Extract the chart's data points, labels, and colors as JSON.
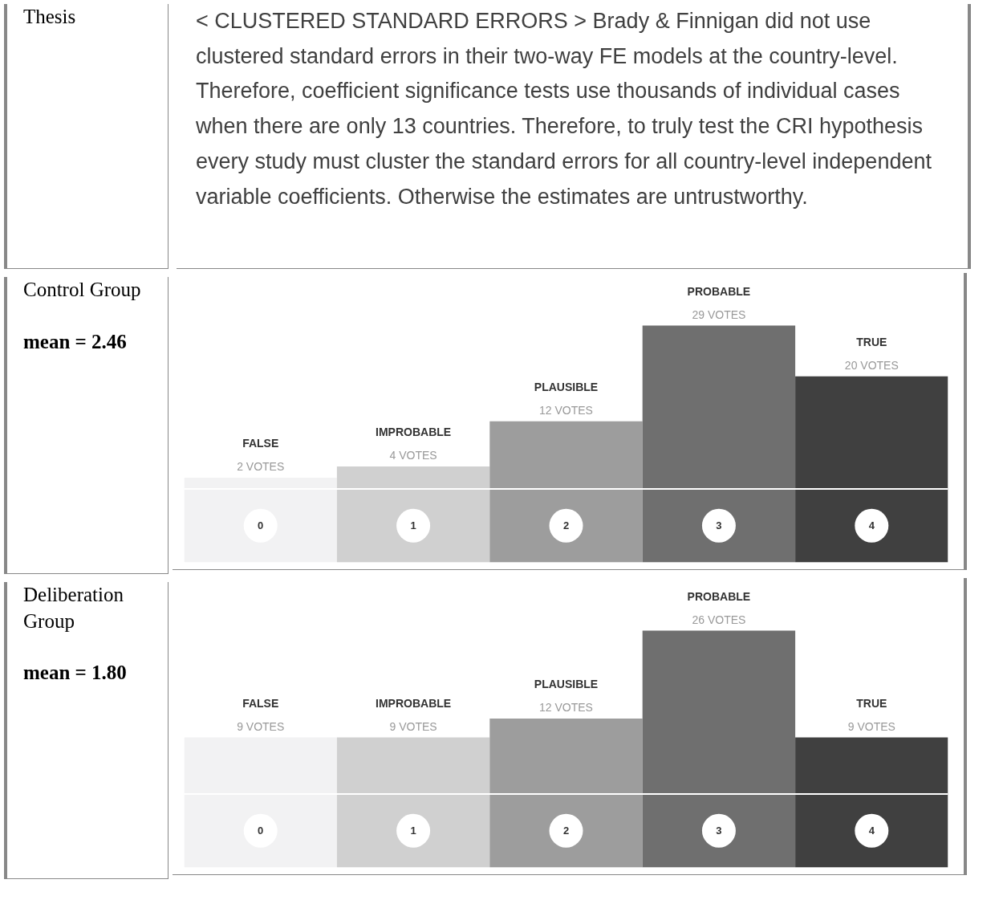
{
  "chart_data": [
    {
      "type": "other",
      "title": "Thesis",
      "annotations": [
        "< CLUSTERED STANDARD ERRORS > Brady & Finnigan did not use clustered standard errors in their two-way FE models at the country-level. Therefore, coefficient significance tests use thousands of individual cases when there are only 13 countries. Therefore, to truly test the CRI hypothesis every study must cluster the standard errors for all country-level independent variable coefficients. Otherwise the estimates are untrustworthy."
      ]
    },
    {
      "type": "bar",
      "title": "Control Group",
      "subtitle": "mean = 2.46",
      "categories": [
        "0",
        "1",
        "2",
        "3",
        "4"
      ],
      "values": [
        2,
        4,
        12,
        29,
        20
      ],
      "colors": [
        "#f2f2f3",
        "#d0d0d0",
        "#9d9d9d",
        "#6f6f6f",
        "#404040"
      ],
      "value_labels": [
        "2 VOTES",
        "4 VOTES",
        "12 VOTES",
        "29 VOTES",
        "20 VOTES"
      ],
      "annotations": [
        {
          "text": "FALSE",
          "x": "0",
          "y": 2
        },
        {
          "text": "IMPROBABLE",
          "x": "1",
          "y": 4
        },
        {
          "text": "PLAUSIBLE",
          "x": "2",
          "y": 12
        },
        {
          "text": "PROBABLE",
          "x": "3",
          "y": 29
        },
        {
          "text": "TRUE",
          "x": "4",
          "y": 20
        }
      ]
    },
    {
      "type": "bar",
      "title": "Deliberation Group",
      "subtitle": "mean = 1.80",
      "categories": [
        "0",
        "1",
        "2",
        "3",
        "4"
      ],
      "values": [
        9,
        9,
        12,
        26,
        9
      ],
      "colors": [
        "#f2f2f3",
        "#d0d0d0",
        "#9d9d9d",
        "#6f6f6f",
        "#404040"
      ],
      "value_labels": [
        "9 VOTES",
        "9 VOTES",
        "12 VOTES",
        "26 VOTES",
        "9 VOTES"
      ],
      "annotations": [
        {
          "text": "FALSE",
          "x": "0",
          "y": 9
        },
        {
          "text": "IMPROBABLE",
          "x": "1",
          "y": 9
        },
        {
          "text": "PLAUSIBLE",
          "x": "2",
          "y": 12
        },
        {
          "text": "PROBABLE",
          "x": "3",
          "y": 26
        },
        {
          "text": "TRUE",
          "x": "4",
          "y": 9
        }
      ]
    }
  ]
}
